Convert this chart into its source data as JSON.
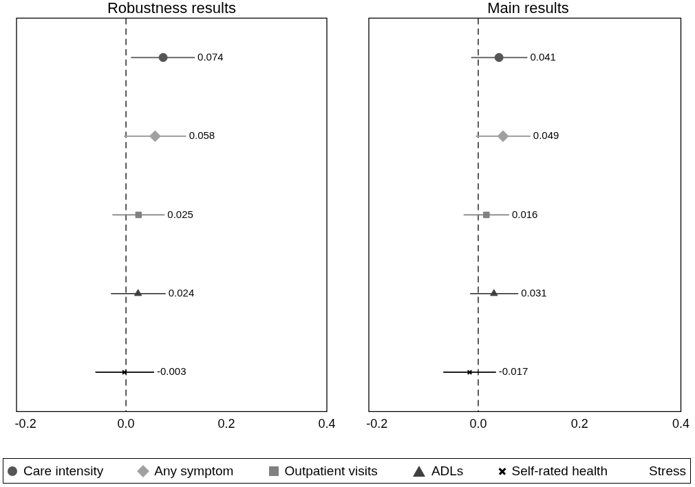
{
  "chart_data": [
    {
      "type": "scatter",
      "title": "Robustness results",
      "orientation": "horizontal",
      "categories": [
        null,
        null,
        null,
        null,
        null
      ],
      "xlim": [
        -0.218,
        0.4
      ],
      "xticks": [
        {
          "value": -0.2,
          "label": "-0.2"
        },
        {
          "value": 0,
          "label": "0.0"
        },
        {
          "value": 0.2,
          "label": "0.2"
        },
        {
          "value": 0.4,
          "label": "0.4"
        }
      ],
      "tick_labels": "x",
      "grid": false,
      "legend": "bottom",
      "data_labels": true,
      "ref_lines": [
        {
          "axis": "x",
          "value": 0,
          "line_style": "dashed",
          "color": "#000000"
        }
      ],
      "series": [
        {
          "name": "Care intensity",
          "color": "#555555",
          "marker": "circle",
          "values": [
            0.074,
            null,
            null,
            null,
            null
          ],
          "errors": [
            [
              0.01,
              0.137
            ],
            null,
            null,
            null,
            null
          ]
        },
        {
          "name": "Any symptom",
          "color": "#a0a0a0",
          "marker": "diamond",
          "values": [
            null,
            0.058,
            null,
            null,
            null
          ],
          "errors": [
            null,
            [
              -0.004,
              0.12
            ],
            null,
            null,
            null
          ]
        },
        {
          "name": "Outpatient visits",
          "color": "#808080",
          "marker": "square",
          "values": [
            null,
            null,
            0.025,
            null,
            null
          ],
          "errors": [
            null,
            null,
            [
              -0.027,
              0.077
            ],
            null,
            null
          ]
        },
        {
          "name": "ADLs",
          "color": "#404040",
          "marker": "triangle",
          "values": [
            null,
            null,
            null,
            0.024,
            null
          ],
          "errors": [
            null,
            null,
            null,
            [
              -0.03,
              0.079
            ],
            null
          ]
        },
        {
          "name": "Self-rated health",
          "color": "#000000",
          "marker": "cross",
          "values": [
            null,
            null,
            null,
            null,
            -0.003
          ],
          "errors": [
            null,
            null,
            null,
            null,
            [
              -0.061,
              0.056
            ]
          ]
        },
        {
          "name": "Stress",
          "color": "#000000",
          "marker": "none",
          "values": [
            null,
            null,
            null,
            null,
            null
          ]
        }
      ]
    },
    {
      "type": "scatter",
      "title": "Main results",
      "orientation": "horizontal",
      "categories": [
        null,
        null,
        null,
        null,
        null
      ],
      "xlim": [
        -0.216,
        0.4
      ],
      "xticks": [
        {
          "value": -0.2,
          "label": "-0.2"
        },
        {
          "value": 0,
          "label": "0.0"
        },
        {
          "value": 0.2,
          "label": "0.2"
        },
        {
          "value": 0.4,
          "label": "0.4"
        }
      ],
      "tick_labels": "x",
      "grid": false,
      "data_labels": true,
      "ref_lines": [
        {
          "axis": "x",
          "value": 0,
          "line_style": "dashed",
          "color": "#000000"
        }
      ],
      "series": [
        {
          "color": "#555555",
          "marker": "circle",
          "values": [
            0.041,
            null,
            null,
            null,
            null
          ],
          "errors": [
            [
              -0.014,
              0.097
            ],
            null,
            null,
            null,
            null
          ]
        },
        {
          "color": "#a0a0a0",
          "marker": "diamond",
          "values": [
            null,
            0.049,
            null,
            null,
            null
          ],
          "errors": [
            null,
            [
              -0.005,
              0.103
            ],
            null,
            null,
            null
          ]
        },
        {
          "color": "#808080",
          "marker": "square",
          "values": [
            null,
            null,
            0.016,
            null,
            null
          ],
          "errors": [
            null,
            null,
            [
              -0.029,
              0.061
            ],
            null,
            null
          ]
        },
        {
          "color": "#404040",
          "marker": "triangle",
          "values": [
            null,
            null,
            null,
            0.031,
            null
          ],
          "errors": [
            null,
            null,
            null,
            [
              -0.016,
              0.079
            ],
            null
          ]
        },
        {
          "color": "#000000",
          "marker": "cross",
          "values": [
            null,
            null,
            null,
            null,
            -0.017
          ],
          "errors": [
            null,
            null,
            null,
            null,
            [
              -0.069,
              0.035
            ]
          ]
        }
      ]
    }
  ]
}
